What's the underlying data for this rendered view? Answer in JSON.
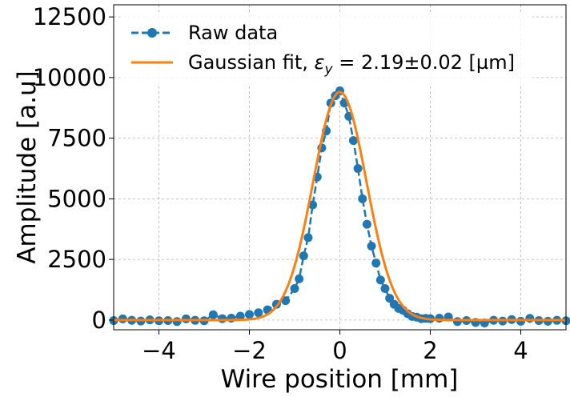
{
  "chart_data": {
    "type": "line",
    "xlabel": "Wire position [mm]",
    "ylabel": "Amplitude [a.u]",
    "xlim": [
      -5,
      5
    ],
    "ylim": [
      -400,
      13000
    ],
    "xticks": [
      -4,
      -2,
      0,
      2,
      4
    ],
    "yticks": [
      0,
      2500,
      5000,
      7500,
      10000,
      12500
    ],
    "xtick_labels": [
      "−4",
      "−2",
      "0",
      "2",
      "4"
    ],
    "ytick_labels": [
      "0",
      "2500",
      "5000",
      "7500",
      "10000",
      "12500"
    ],
    "grid": true,
    "legend_position": "top-left",
    "series": [
      {
        "name": "Raw data",
        "style": "dashed line with circle markers",
        "color": "#1f77b4",
        "x": [
          -5.0,
          -4.8,
          -4.6,
          -4.4,
          -4.2,
          -4.0,
          -3.8,
          -3.6,
          -3.4,
          -3.2,
          -3.0,
          -2.8,
          -2.6,
          -2.4,
          -2.2,
          -2.0,
          -1.8,
          -1.6,
          -1.4,
          -1.2,
          -1.0,
          -0.9,
          -0.8,
          -0.7,
          -0.6,
          -0.5,
          -0.4,
          -0.3,
          -0.2,
          -0.1,
          0.0,
          0.1,
          0.2,
          0.3,
          0.4,
          0.5,
          0.6,
          0.7,
          0.8,
          0.9,
          1.0,
          1.1,
          1.2,
          1.3,
          1.4,
          1.5,
          1.6,
          1.7,
          1.8,
          1.9,
          2.0,
          2.2,
          2.4,
          2.6,
          2.8,
          3.0,
          3.2,
          3.4,
          3.6,
          3.8,
          4.0,
          4.2,
          4.4,
          4.6,
          4.8,
          5.0
        ],
        "y": [
          -20,
          50,
          -10,
          -40,
          10,
          -30,
          -20,
          -60,
          50,
          -10,
          -30,
          220,
          60,
          80,
          160,
          230,
          300,
          420,
          650,
          800,
          1300,
          1700,
          2650,
          3400,
          4750,
          5900,
          7100,
          7800,
          8950,
          9250,
          9450,
          8950,
          8400,
          7400,
          6250,
          5000,
          3950,
          3050,
          2350,
          1650,
          1300,
          900,
          650,
          480,
          400,
          260,
          150,
          120,
          60,
          70,
          60,
          80,
          130,
          -60,
          -20,
          -100,
          -120,
          -10,
          -40,
          20,
          -50,
          70,
          -20,
          -50,
          -10,
          -30
        ]
      },
      {
        "name": "Gaussian fit, εy = 2.19±0.02 [µm]",
        "style": "solid line",
        "color": "#ff7f0e",
        "amplitude": 9400,
        "mean": 0.0,
        "sigma": 0.59,
        "offset": 0
      }
    ]
  },
  "legend": {
    "raw_label": "Raw data",
    "fit_label_prefix": "Gaussian fit, ",
    "fit_symbol": "ε",
    "fit_subscript": "y",
    "fit_label_suffix": " = 2.19±0.02 [µm]"
  },
  "colors": {
    "raw": "#1f77b4",
    "fit": "#ff7f0e",
    "grid": "#b0b0b0"
  }
}
